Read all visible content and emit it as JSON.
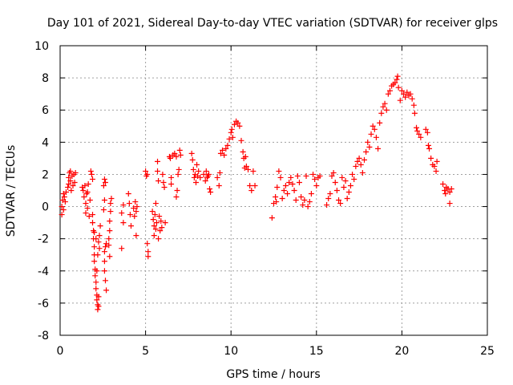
{
  "chart_data": {
    "type": "scatter",
    "title": "Day 101 of 2021, Sidereal Day-to-day VTEC variation (SDTVAR) for receiver glps",
    "xlabel": "GPS time / hours",
    "ylabel": "SDTVAR / TECUs",
    "xlim": [
      0,
      25
    ],
    "ylim": [
      -8,
      10
    ],
    "xticks": [
      0,
      5,
      10,
      15,
      20,
      25
    ],
    "xtick_labels": [
      "0",
      "5",
      "10",
      "15",
      "20",
      "25"
    ],
    "yticks": [
      -8,
      -6,
      -4,
      -2,
      0,
      2,
      4,
      6,
      8,
      10
    ],
    "ytick_labels": [
      "-8",
      "-6",
      "-4",
      "-2",
      "0",
      "2",
      "4",
      "6",
      "8",
      "10"
    ],
    "grid": true,
    "marker": "+",
    "color": "#ff0000",
    "series": [
      {
        "name": "SDTVAR",
        "points": [
          [
            0.1,
            -0.5
          ],
          [
            0.1,
            0.0
          ],
          [
            0.15,
            0.4
          ],
          [
            0.2,
            0.8
          ],
          [
            0.2,
            -0.2
          ],
          [
            0.25,
            0.6
          ],
          [
            0.3,
            0.3
          ],
          [
            0.35,
            0.9
          ],
          [
            0.45,
            1.2
          ],
          [
            0.5,
            1.8
          ],
          [
            0.5,
            1.4
          ],
          [
            0.55,
            2.1
          ],
          [
            0.6,
            1.6
          ],
          [
            0.6,
            2.2
          ],
          [
            0.65,
            1.0
          ],
          [
            0.7,
            1.9
          ],
          [
            0.75,
            1.3
          ],
          [
            0.8,
            2.0
          ],
          [
            0.85,
            1.5
          ],
          [
            0.9,
            2.1
          ],
          [
            1.3,
            1.2
          ],
          [
            1.35,
            1.0
          ],
          [
            1.4,
            0.6
          ],
          [
            1.45,
            1.3
          ],
          [
            1.5,
            0.2
          ],
          [
            1.5,
            -0.4
          ],
          [
            1.55,
            0.8
          ],
          [
            1.6,
            -0.1
          ],
          [
            1.6,
            0.9
          ],
          [
            1.65,
            1.4
          ],
          [
            1.7,
            -0.6
          ],
          [
            1.75,
            0.4
          ],
          [
            1.8,
            2.2
          ],
          [
            1.85,
            2.0
          ],
          [
            1.9,
            1.7
          ],
          [
            1.9,
            -0.5
          ],
          [
            1.9,
            -1.0
          ],
          [
            1.95,
            -1.5
          ],
          [
            1.95,
            -2.0
          ],
          [
            2.0,
            -2.5
          ],
          [
            2.0,
            -3.0
          ],
          [
            2.0,
            -3.4
          ],
          [
            2.05,
            -3.9
          ],
          [
            2.05,
            -4.3
          ],
          [
            2.1,
            -4.7
          ],
          [
            2.1,
            -5.1
          ],
          [
            2.15,
            -5.5
          ],
          [
            2.15,
            -5.8
          ],
          [
            2.2,
            -6.1
          ],
          [
            2.2,
            -6.4
          ],
          [
            2.25,
            -6.2
          ],
          [
            2.25,
            -5.6
          ],
          [
            2.15,
            -4.0
          ],
          [
            2.2,
            -3.0
          ],
          [
            2.25,
            -2.2
          ],
          [
            2.3,
            -1.8
          ],
          [
            2.3,
            -2.6
          ],
          [
            2.35,
            -1.2
          ],
          [
            2.1,
            -2.0
          ],
          [
            2.0,
            -1.6
          ],
          [
            2.55,
            1.3
          ],
          [
            2.6,
            1.7
          ],
          [
            2.65,
            1.5
          ],
          [
            2.55,
            -0.2
          ],
          [
            2.6,
            0.4
          ],
          [
            2.6,
            -4.0
          ],
          [
            2.65,
            -4.6
          ],
          [
            2.7,
            -5.2
          ],
          [
            2.6,
            -3.4
          ],
          [
            2.6,
            -2.8
          ],
          [
            2.65,
            -2.5
          ],
          [
            2.7,
            -2.3
          ],
          [
            2.85,
            -2.4
          ],
          [
            2.85,
            -2.0
          ],
          [
            2.9,
            -1.5
          ],
          [
            2.9,
            -0.9
          ],
          [
            2.95,
            -0.3
          ],
          [
            2.95,
            0.2
          ],
          [
            3.0,
            0.5
          ],
          [
            2.9,
            -3.1
          ],
          [
            3.6,
            -0.4
          ],
          [
            3.6,
            -2.6
          ],
          [
            3.7,
            0.1
          ],
          [
            3.7,
            -1.0
          ],
          [
            4.0,
            0.8
          ],
          [
            4.05,
            0.2
          ],
          [
            4.1,
            -0.5
          ],
          [
            4.15,
            -1.2
          ],
          [
            4.3,
            -0.1
          ],
          [
            4.35,
            -0.6
          ],
          [
            4.4,
            0.3
          ],
          [
            4.45,
            -0.3
          ],
          [
            4.45,
            -1.8
          ],
          [
            4.5,
            0.0
          ],
          [
            5.0,
            2.2
          ],
          [
            5.05,
            1.9
          ],
          [
            5.1,
            2.0
          ],
          [
            5.1,
            -2.3
          ],
          [
            5.15,
            -3.1
          ],
          [
            5.15,
            -2.8
          ],
          [
            5.4,
            -0.3
          ],
          [
            5.45,
            -0.8
          ],
          [
            5.5,
            -1.2
          ],
          [
            5.5,
            -1.8
          ],
          [
            5.55,
            -0.5
          ],
          [
            5.6,
            -1.4
          ],
          [
            5.6,
            0.2
          ],
          [
            5.65,
            -1.0
          ],
          [
            5.7,
            2.8
          ],
          [
            5.7,
            2.2
          ],
          [
            5.75,
            1.6
          ],
          [
            5.75,
            -2.0
          ],
          [
            5.8,
            -0.6
          ],
          [
            5.85,
            -1.5
          ],
          [
            5.9,
            -0.9
          ],
          [
            5.95,
            -1.3
          ],
          [
            6.0,
            2.0
          ],
          [
            6.05,
            1.5
          ],
          [
            6.1,
            1.2
          ],
          [
            6.15,
            -1.0
          ],
          [
            6.4,
            3.1
          ],
          [
            6.45,
            3.0
          ],
          [
            6.5,
            1.8
          ],
          [
            6.5,
            1.4
          ],
          [
            6.6,
            3.2
          ],
          [
            6.7,
            3.3
          ],
          [
            6.8,
            3.1
          ],
          [
            6.8,
            0.6
          ],
          [
            6.85,
            1.0
          ],
          [
            6.9,
            2.0
          ],
          [
            6.95,
            2.3
          ],
          [
            7.0,
            3.5
          ],
          [
            7.05,
            3.2
          ],
          [
            7.7,
            3.3
          ],
          [
            7.75,
            2.9
          ],
          [
            7.8,
            2.3
          ],
          [
            7.85,
            1.8
          ],
          [
            7.9,
            2.0
          ],
          [
            7.95,
            1.5
          ],
          [
            8.0,
            2.6
          ],
          [
            8.05,
            1.9
          ],
          [
            8.1,
            2.2
          ],
          [
            8.2,
            1.8
          ],
          [
            8.4,
            2.0
          ],
          [
            8.5,
            1.6
          ],
          [
            8.55,
            2.2
          ],
          [
            8.6,
            1.8
          ],
          [
            8.65,
            1.9
          ],
          [
            8.7,
            2.0
          ],
          [
            8.75,
            1.1
          ],
          [
            8.8,
            0.9
          ],
          [
            9.2,
            1.8
          ],
          [
            9.3,
            1.3
          ],
          [
            9.35,
            2.1
          ],
          [
            9.4,
            3.3
          ],
          [
            9.5,
            3.5
          ],
          [
            9.6,
            3.2
          ],
          [
            9.7,
            3.6
          ],
          [
            9.8,
            3.8
          ],
          [
            9.9,
            4.2
          ],
          [
            10.0,
            4.6
          ],
          [
            10.05,
            4.8
          ],
          [
            10.1,
            4.3
          ],
          [
            10.2,
            5.1
          ],
          [
            10.3,
            5.3
          ],
          [
            10.4,
            5.2
          ],
          [
            10.5,
            5.0
          ],
          [
            10.6,
            4.1
          ],
          [
            10.7,
            3.4
          ],
          [
            10.75,
            3.0
          ],
          [
            10.8,
            2.4
          ],
          [
            10.85,
            3.1
          ],
          [
            10.9,
            2.5
          ],
          [
            11.0,
            2.3
          ],
          [
            11.1,
            1.3
          ],
          [
            11.2,
            1.0
          ],
          [
            11.3,
            2.2
          ],
          [
            11.4,
            1.3
          ],
          [
            12.4,
            -0.7
          ],
          [
            12.5,
            0.2
          ],
          [
            12.6,
            0.6
          ],
          [
            12.65,
            0.3
          ],
          [
            12.7,
            1.2
          ],
          [
            12.8,
            2.2
          ],
          [
            12.9,
            1.8
          ],
          [
            13.0,
            0.5
          ],
          [
            13.1,
            1.0
          ],
          [
            13.2,
            1.3
          ],
          [
            13.3,
            0.8
          ],
          [
            13.4,
            1.5
          ],
          [
            13.5,
            1.8
          ],
          [
            13.6,
            1.4
          ],
          [
            13.7,
            1.0
          ],
          [
            13.8,
            0.4
          ],
          [
            13.9,
            1.9
          ],
          [
            14.0,
            1.5
          ],
          [
            14.1,
            0.6
          ],
          [
            14.2,
            0.1
          ],
          [
            14.3,
            0.4
          ],
          [
            14.4,
            1.9
          ],
          [
            14.5,
            0.0
          ],
          [
            14.6,
            0.3
          ],
          [
            14.7,
            0.8
          ],
          [
            14.8,
            2.0
          ],
          [
            14.9,
            1.7
          ],
          [
            15.0,
            1.3
          ],
          [
            15.1,
            1.8
          ],
          [
            15.2,
            1.9
          ],
          [
            15.6,
            0.1
          ],
          [
            15.7,
            0.5
          ],
          [
            15.8,
            0.8
          ],
          [
            15.9,
            1.9
          ],
          [
            16.0,
            2.1
          ],
          [
            16.1,
            1.5
          ],
          [
            16.2,
            1.0
          ],
          [
            16.3,
            0.4
          ],
          [
            16.4,
            0.2
          ],
          [
            16.5,
            1.8
          ],
          [
            16.6,
            1.2
          ],
          [
            16.7,
            1.6
          ],
          [
            16.8,
            0.5
          ],
          [
            16.9,
            0.9
          ],
          [
            17.0,
            1.3
          ],
          [
            17.1,
            2.0
          ],
          [
            17.2,
            1.7
          ],
          [
            17.3,
            2.5
          ],
          [
            17.4,
            2.8
          ],
          [
            17.5,
            3.0
          ],
          [
            17.6,
            2.6
          ],
          [
            17.7,
            2.1
          ],
          [
            17.8,
            2.9
          ],
          [
            17.9,
            3.4
          ],
          [
            18.0,
            4.0
          ],
          [
            18.1,
            3.7
          ],
          [
            18.2,
            4.5
          ],
          [
            18.3,
            5.0
          ],
          [
            18.4,
            4.8
          ],
          [
            18.5,
            4.3
          ],
          [
            18.6,
            3.6
          ],
          [
            18.7,
            5.2
          ],
          [
            18.8,
            5.8
          ],
          [
            18.9,
            6.2
          ],
          [
            19.0,
            6.4
          ],
          [
            19.1,
            6.0
          ],
          [
            19.2,
            7.0
          ],
          [
            19.3,
            7.2
          ],
          [
            19.4,
            7.5
          ],
          [
            19.5,
            7.6
          ],
          [
            19.6,
            7.7
          ],
          [
            19.7,
            7.9
          ],
          [
            19.75,
            8.1
          ],
          [
            19.8,
            7.4
          ],
          [
            19.9,
            6.6
          ],
          [
            20.0,
            7.2
          ],
          [
            20.1,
            7.0
          ],
          [
            20.2,
            6.8
          ],
          [
            20.3,
            7.1
          ],
          [
            20.4,
            6.9
          ],
          [
            20.5,
            7.0
          ],
          [
            20.6,
            6.7
          ],
          [
            20.7,
            6.3
          ],
          [
            20.75,
            5.8
          ],
          [
            20.85,
            4.9
          ],
          [
            20.9,
            4.7
          ],
          [
            21.0,
            4.5
          ],
          [
            21.1,
            4.3
          ],
          [
            21.4,
            4.8
          ],
          [
            21.5,
            4.6
          ],
          [
            21.55,
            3.8
          ],
          [
            21.6,
            3.6
          ],
          [
            21.7,
            3.0
          ],
          [
            21.8,
            2.6
          ],
          [
            21.9,
            2.5
          ],
          [
            22.0,
            2.2
          ],
          [
            22.05,
            2.8
          ],
          [
            22.4,
            1.4
          ],
          [
            22.5,
            1.0
          ],
          [
            22.55,
            0.8
          ],
          [
            22.6,
            1.2
          ],
          [
            22.7,
            1.1
          ],
          [
            22.8,
            0.9
          ],
          [
            22.8,
            0.2
          ],
          [
            22.9,
            1.1
          ]
        ]
      }
    ]
  }
}
